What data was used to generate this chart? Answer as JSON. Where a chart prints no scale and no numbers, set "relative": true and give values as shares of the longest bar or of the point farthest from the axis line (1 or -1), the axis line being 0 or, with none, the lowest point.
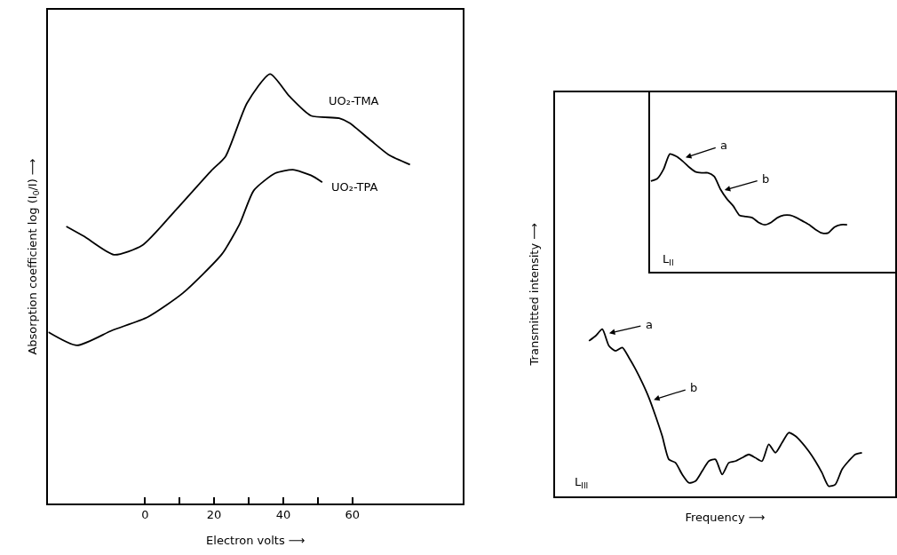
{
  "chart_data": [
    {
      "type": "line",
      "relative": true,
      "xlabel": "Electron volts ⟶",
      "ylabel": "Absorption coefficient log (I$_{0}$/I) ⟶",
      "xlim": [
        -28,
        92
      ],
      "xticks": [
        0,
        {
          "value": 10,
          "label": null
        },
        20,
        {
          "value": 30,
          "label": null
        },
        40,
        {
          "value": 50,
          "label": null
        },
        60
      ],
      "tick_labels": "x",
      "series": [
        {
          "name": "UO₂-TMA",
          "color": "#000000",
          "x": [
            -22.8,
            -17.7,
            -9.0,
            -0.8,
            9.0,
            19.2,
            23.3,
            29.5,
            36.2,
            41.8,
            48.0,
            56.2,
            59.2,
            65.4,
            70.5,
            76.7
          ],
          "values": [
            0.645,
            0.622,
            0.579,
            0.601,
            0.684,
            0.775,
            0.808,
            0.932,
            1.0,
            0.948,
            0.903,
            0.897,
            0.886,
            0.845,
            0.812,
            0.789
          ]
        },
        {
          "name": "UO₂-TPA",
          "color": "#000000",
          "x": [
            -28.0,
            -19.7,
            -9.5,
            0.8,
            11.0,
            22.3,
            27.4,
            31.5,
            37.7,
            42.8,
            48.0,
            51.3
          ],
          "values": [
            0.399,
            0.368,
            0.403,
            0.434,
            0.49,
            0.581,
            0.651,
            0.729,
            0.769,
            0.777,
            0.764,
            0.748
          ]
        }
      ]
    },
    {
      "type": "line",
      "relative": true,
      "xlabel": "Frequency ⟶",
      "ylabel": "Transmitted intensity ⟶",
      "tick_labels": false,
      "categories": [
        null,
        null,
        null,
        null,
        null,
        null,
        null,
        null,
        null,
        null,
        null,
        null,
        null,
        null,
        null,
        null,
        null,
        null,
        null,
        null,
        null,
        null,
        null,
        null,
        null,
        null,
        null,
        null,
        null,
        null,
        null,
        null,
        null,
        null,
        null,
        null,
        null,
        null,
        null,
        null,
        null,
        null
      ],
      "values": [
        0.93,
        0.96,
        1.0,
        0.9,
        0.87,
        0.89,
        0.83,
        0.76,
        0.68,
        0.59,
        0.48,
        0.36,
        0.22,
        0.2,
        0.13,
        0.08,
        0.09,
        0.15,
        0.21,
        0.22,
        0.13,
        0.2,
        0.21,
        0.23,
        0.25,
        0.23,
        0.21,
        0.31,
        0.26,
        0.32,
        0.38,
        0.36,
        0.32,
        0.27,
        0.21,
        0.14,
        0.06,
        0.07,
        0.16,
        0.21,
        0.25,
        0.26
      ],
      "color": "#000000",
      "annotations": [
        "a",
        "b",
        "L$_{III}$"
      ]
    },
    {
      "type": "line",
      "relative": true,
      "tick_labels": false,
      "categories": [
        null,
        null,
        null,
        null,
        null,
        null,
        null,
        null,
        null,
        null,
        null,
        null,
        null,
        null,
        null,
        null,
        null,
        null,
        null,
        null,
        null,
        null,
        null,
        null,
        null,
        null,
        null,
        null,
        null,
        null,
        null,
        null
      ],
      "values": [
        0.77,
        0.79,
        0.87,
        1.0,
        0.98,
        0.94,
        0.89,
        0.85,
        0.84,
        0.84,
        0.81,
        0.7,
        0.62,
        0.56,
        0.48,
        0.47,
        0.46,
        0.42,
        0.4,
        0.42,
        0.46,
        0.48,
        0.48,
        0.46,
        0.43,
        0.4,
        0.36,
        0.33,
        0.33,
        0.38,
        0.4,
        0.4
      ],
      "color": "#000000",
      "annotations": [
        "a",
        "b",
        "L$_{II}$"
      ]
    }
  ]
}
